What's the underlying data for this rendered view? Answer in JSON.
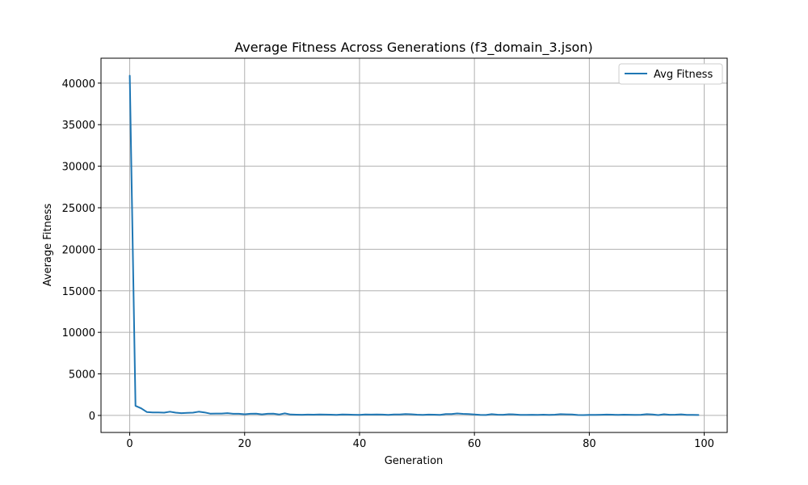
{
  "chart_data": {
    "type": "line",
    "title": "Average Fitness Across Generations (f3_domain_3.json)",
    "xlabel": "Generation",
    "ylabel": "Average Fitness",
    "xlim": [
      -5,
      104
    ],
    "ylim": [
      -2050,
      43000
    ],
    "xticks": [
      0,
      20,
      40,
      60,
      80,
      100
    ],
    "xtick_labels": [
      "0",
      "20",
      "40",
      "60",
      "80",
      "100"
    ],
    "yticks": [
      0,
      5000,
      10000,
      15000,
      20000,
      25000,
      30000,
      35000,
      40000
    ],
    "ytick_labels": [
      "0",
      "5000",
      "10000",
      "15000",
      "20000",
      "25000",
      "30000",
      "35000",
      "40000"
    ],
    "grid": true,
    "legend_position": "top-right",
    "color": "#1f77b4",
    "series": [
      {
        "name": "Avg Fitness",
        "x": [
          0,
          1,
          2,
          3,
          4,
          5,
          6,
          7,
          8,
          9,
          10,
          11,
          12,
          13,
          14,
          15,
          16,
          17,
          18,
          19,
          20,
          21,
          22,
          23,
          24,
          25,
          26,
          27,
          28,
          29,
          30,
          31,
          32,
          33,
          34,
          35,
          36,
          37,
          38,
          39,
          40,
          41,
          42,
          43,
          44,
          45,
          46,
          47,
          48,
          49,
          50,
          51,
          52,
          53,
          54,
          55,
          56,
          57,
          58,
          59,
          60,
          61,
          62,
          63,
          64,
          65,
          66,
          67,
          68,
          69,
          70,
          71,
          72,
          73,
          74,
          75,
          76,
          77,
          78,
          79,
          80,
          81,
          82,
          83,
          84,
          85,
          86,
          87,
          88,
          89,
          90,
          91,
          92,
          93,
          94,
          95,
          96,
          97,
          98,
          99
        ],
        "values": [
          40900,
          1150,
          850,
          400,
          350,
          350,
          330,
          450,
          330,
          280,
          300,
          330,
          450,
          360,
          220,
          230,
          230,
          280,
          200,
          200,
          140,
          200,
          220,
          130,
          200,
          210,
          110,
          250,
          110,
          90,
          80,
          100,
          90,
          110,
          100,
          90,
          70,
          120,
          100,
          80,
          70,
          110,
          100,
          110,
          100,
          60,
          120,
          110,
          170,
          140,
          90,
          70,
          100,
          90,
          70,
          170,
          160,
          240,
          190,
          170,
          110,
          60,
          50,
          150,
          90,
          80,
          140,
          120,
          60,
          70,
          80,
          60,
          90,
          70,
          90,
          150,
          130,
          110,
          50,
          40,
          60,
          70,
          80,
          100,
          90,
          60,
          90,
          80,
          70,
          80,
          150,
          120,
          40,
          140,
          80,
          90,
          130,
          70,
          60,
          50
        ]
      }
    ]
  }
}
